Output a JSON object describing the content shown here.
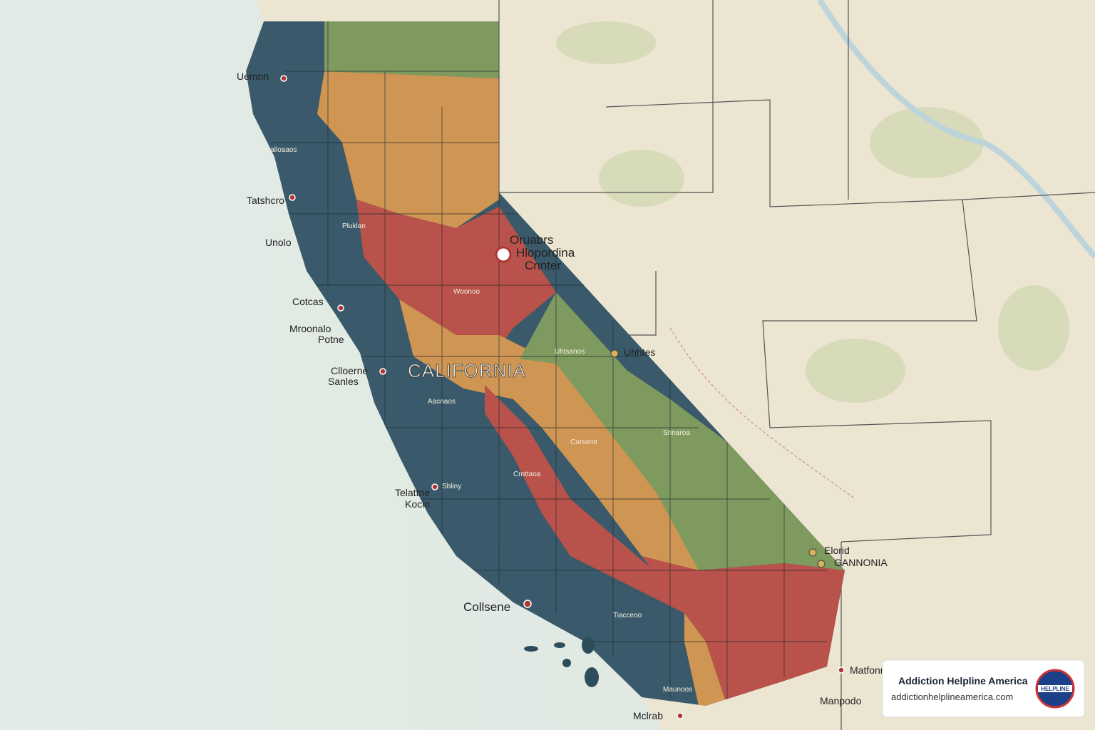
{
  "map": {
    "state_label": "CALIFORNIA",
    "city_labels": [
      "Uemnn",
      "Tatshcro",
      "Unolo",
      "Cotcas",
      "Mroonalo",
      "Potne",
      "Clloerne",
      "Sanles",
      "Telattne",
      "Kocin",
      "Collsene",
      "Mclrab",
      "Uhhtes",
      "Elorid",
      "GANNONIA",
      "Matfonn",
      "Manpodo"
    ],
    "feature_label": [
      "Oruabrs",
      "Hlopordina",
      "Cnnter"
    ],
    "region_labels": [
      "Calloaaos",
      "Pluklan",
      "Sbliny",
      "Aacnaos",
      "Woonoo",
      "Crnttaoa",
      "Uhtsanos",
      "Snnaroa",
      "Corsentr",
      "Tiacceoo",
      "Maunoos"
    ]
  },
  "badge": {
    "title": "Addiction Helpline America",
    "url": "addictionhelplineamerica.com",
    "logo_text": "HELPLINE"
  }
}
